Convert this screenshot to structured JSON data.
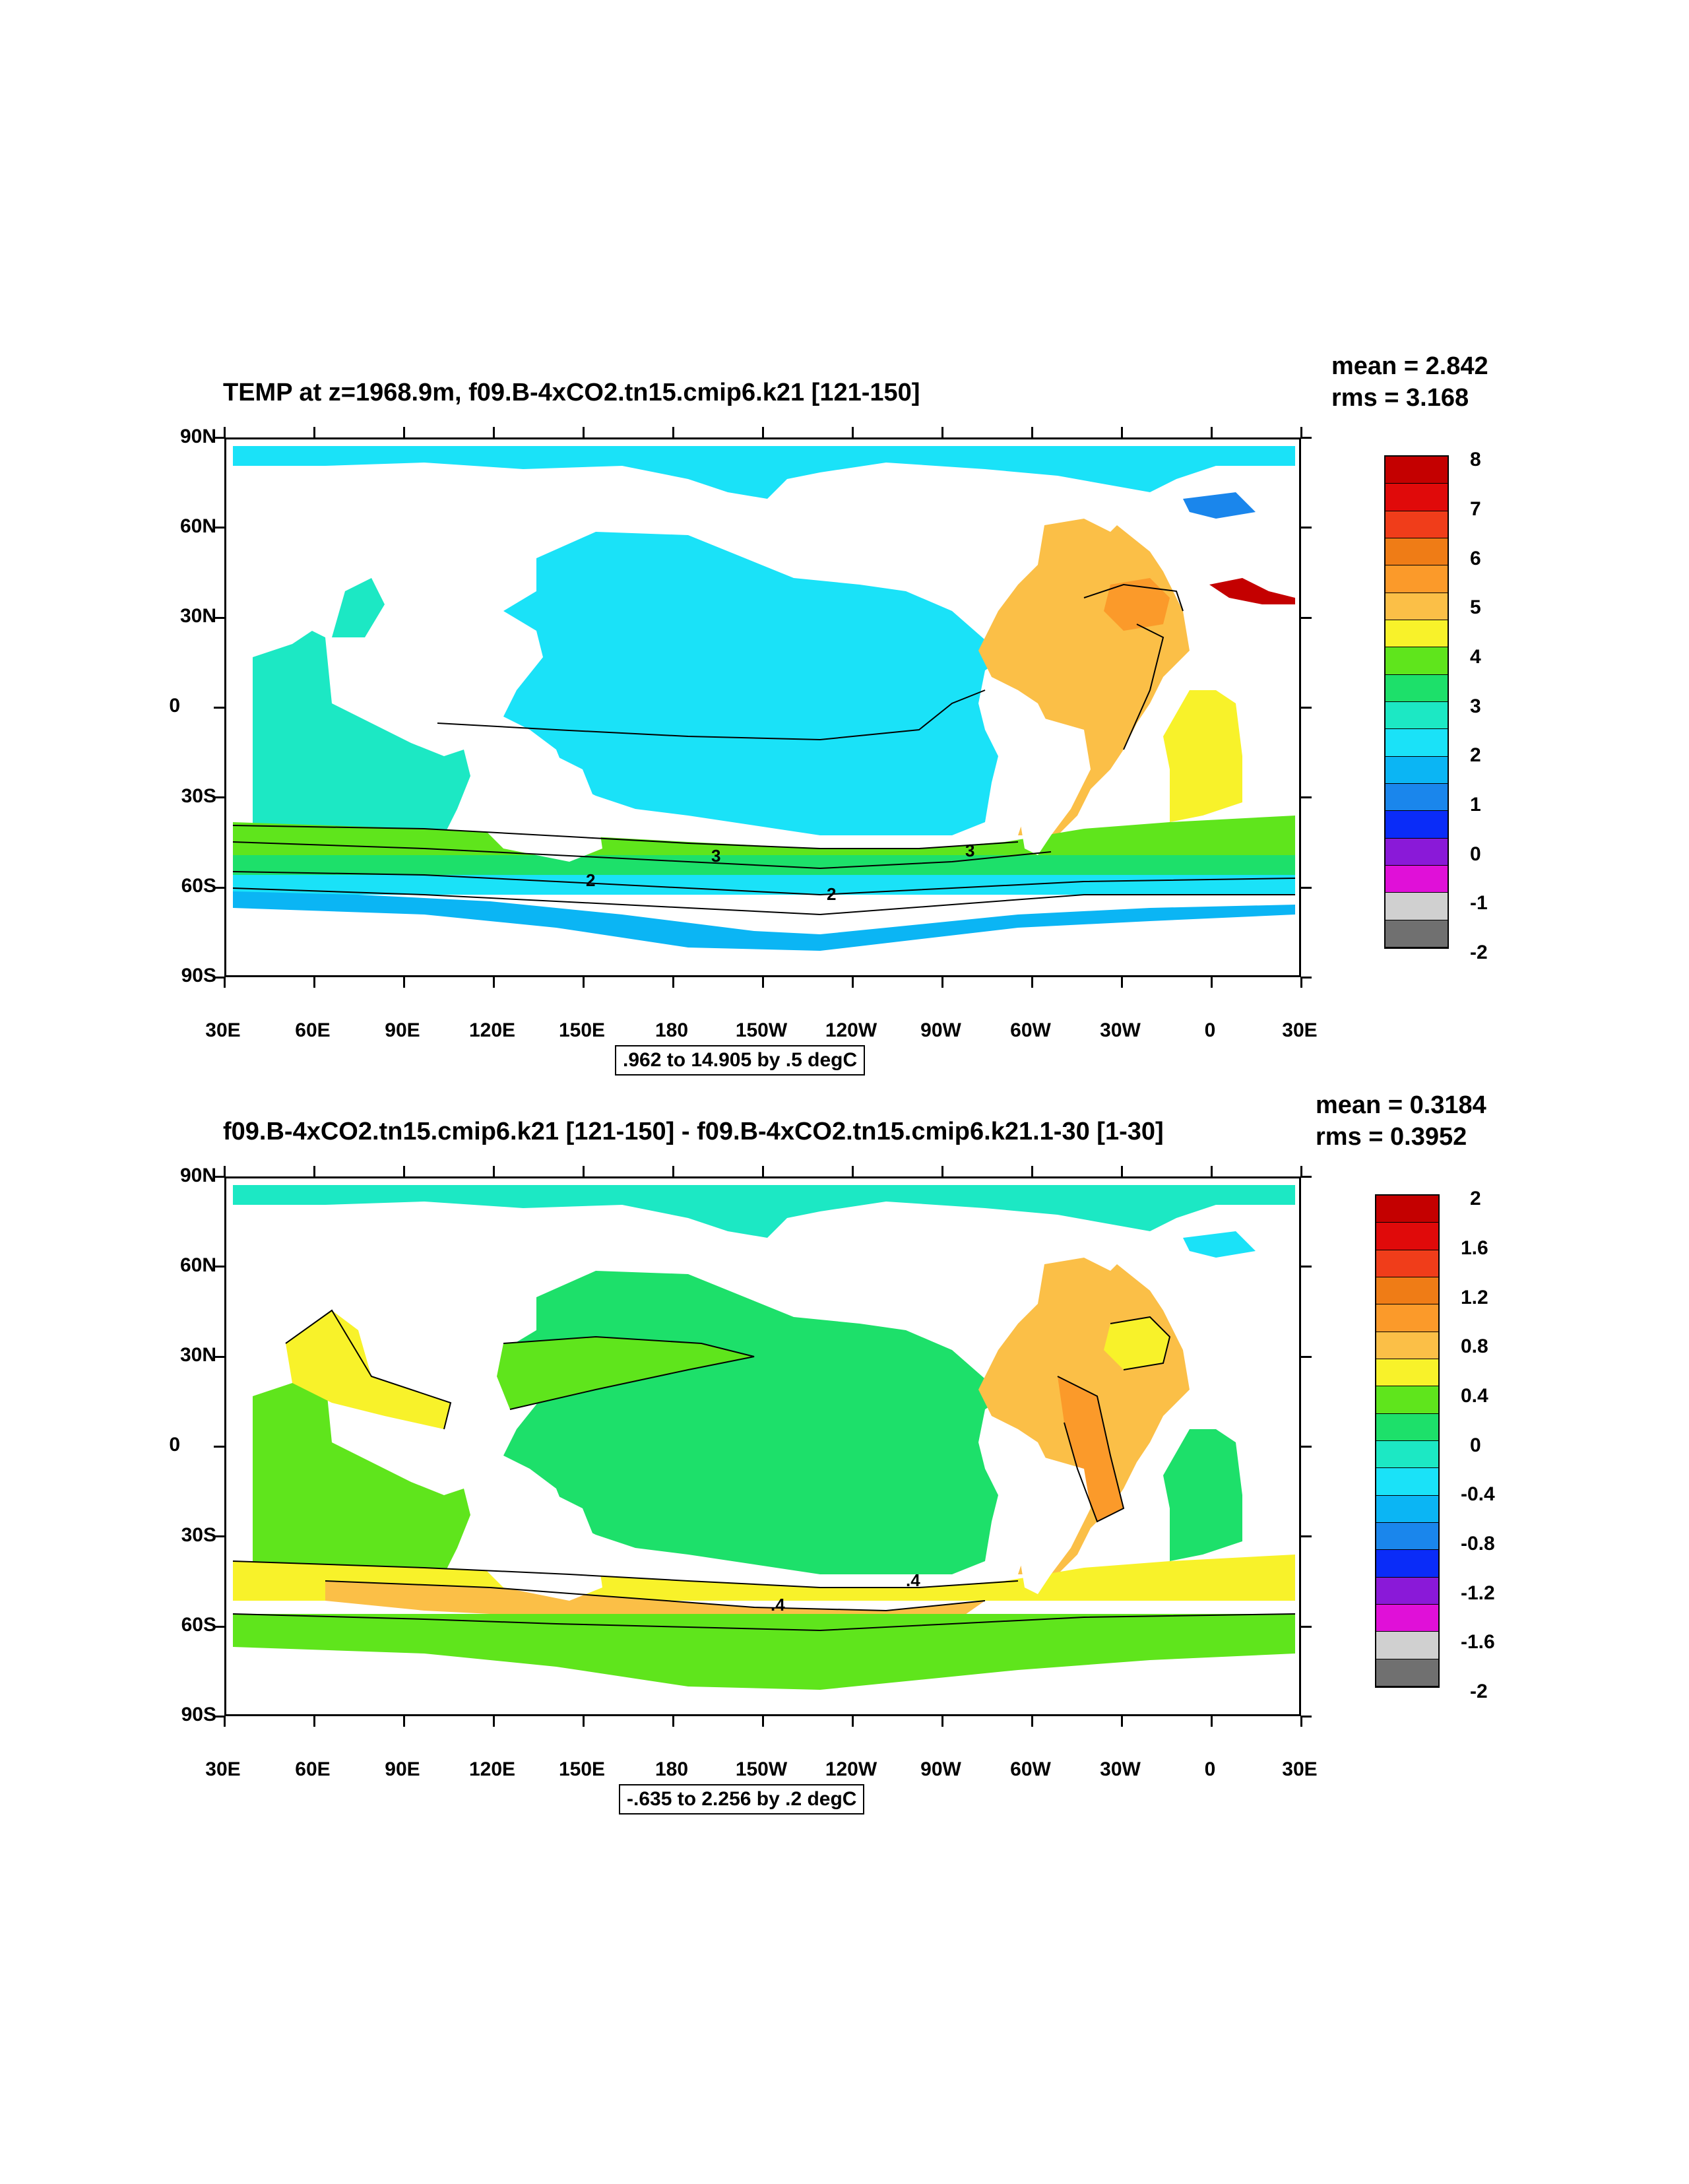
{
  "panel1": {
    "title": "TEMP at z=1968.9m, f09.B-4xCO2.tn15.cmip6.k21 [121-150]",
    "mean": "mean = 2.842",
    "rms": "rms = 3.168",
    "info": ".962 to 14.905 by .5 degC",
    "contour_labels": [
      "3",
      "3",
      "2",
      "2"
    ],
    "colorbar": {
      "labels": [
        "8",
        "7",
        "6",
        "5",
        "4",
        "3",
        "2",
        "1",
        "0",
        "-1",
        "-2"
      ],
      "colors": [
        "#c40000",
        "#e00a0a",
        "#f03d1a",
        "#ef7c16",
        "#fb9a2a",
        "#fbbf47",
        "#f8f22a",
        "#5fe51c",
        "#1de06a",
        "#1ce8c4",
        "#1ae2f8",
        "#0bb5f4",
        "#1a86ec",
        "#0a2cf8",
        "#8a19d8",
        "#e010d8",
        "#d0d0d0",
        "#707070"
      ]
    }
  },
  "panel2": {
    "title": "f09.B-4xCO2.tn15.cmip6.k21 [121-150] - f09.B-4xCO2.tn15.cmip6.k21.1-30 [1-30]",
    "mean": "mean = 0.3184",
    "rms": "rms = 0.3952",
    "info": "-.635 to 2.256 by .2 degC",
    "contour_labels": [
      ".4",
      ".4"
    ],
    "colorbar": {
      "labels": [
        "2",
        "1.6",
        "1.2",
        "0.8",
        "0.4",
        "0",
        "-0.4",
        "-0.8",
        "-1.2",
        "-1.6",
        "-2"
      ],
      "colors": [
        "#c40000",
        "#e00a0a",
        "#f03d1a",
        "#ef7c16",
        "#fb9a2a",
        "#fbbf47",
        "#f8f22a",
        "#5fe51c",
        "#1de06a",
        "#1ce8c4",
        "#1ae2f8",
        "#0bb5f4",
        "#1a86ec",
        "#0a2cf8",
        "#8a19d8",
        "#e010d8",
        "#d0d0d0",
        "#707070"
      ]
    }
  },
  "axes": {
    "y_labels": [
      "90N",
      "60N",
      "30N",
      "0",
      "30S",
      "60S",
      "90S"
    ],
    "x_labels": [
      "30E",
      "60E",
      "90E",
      "120E",
      "150E",
      "180",
      "150W",
      "120W",
      "90W",
      "60W",
      "30W",
      "0",
      "30E"
    ]
  },
  "colors": {
    "land": "#ffffff",
    "contour": "#000000"
  }
}
